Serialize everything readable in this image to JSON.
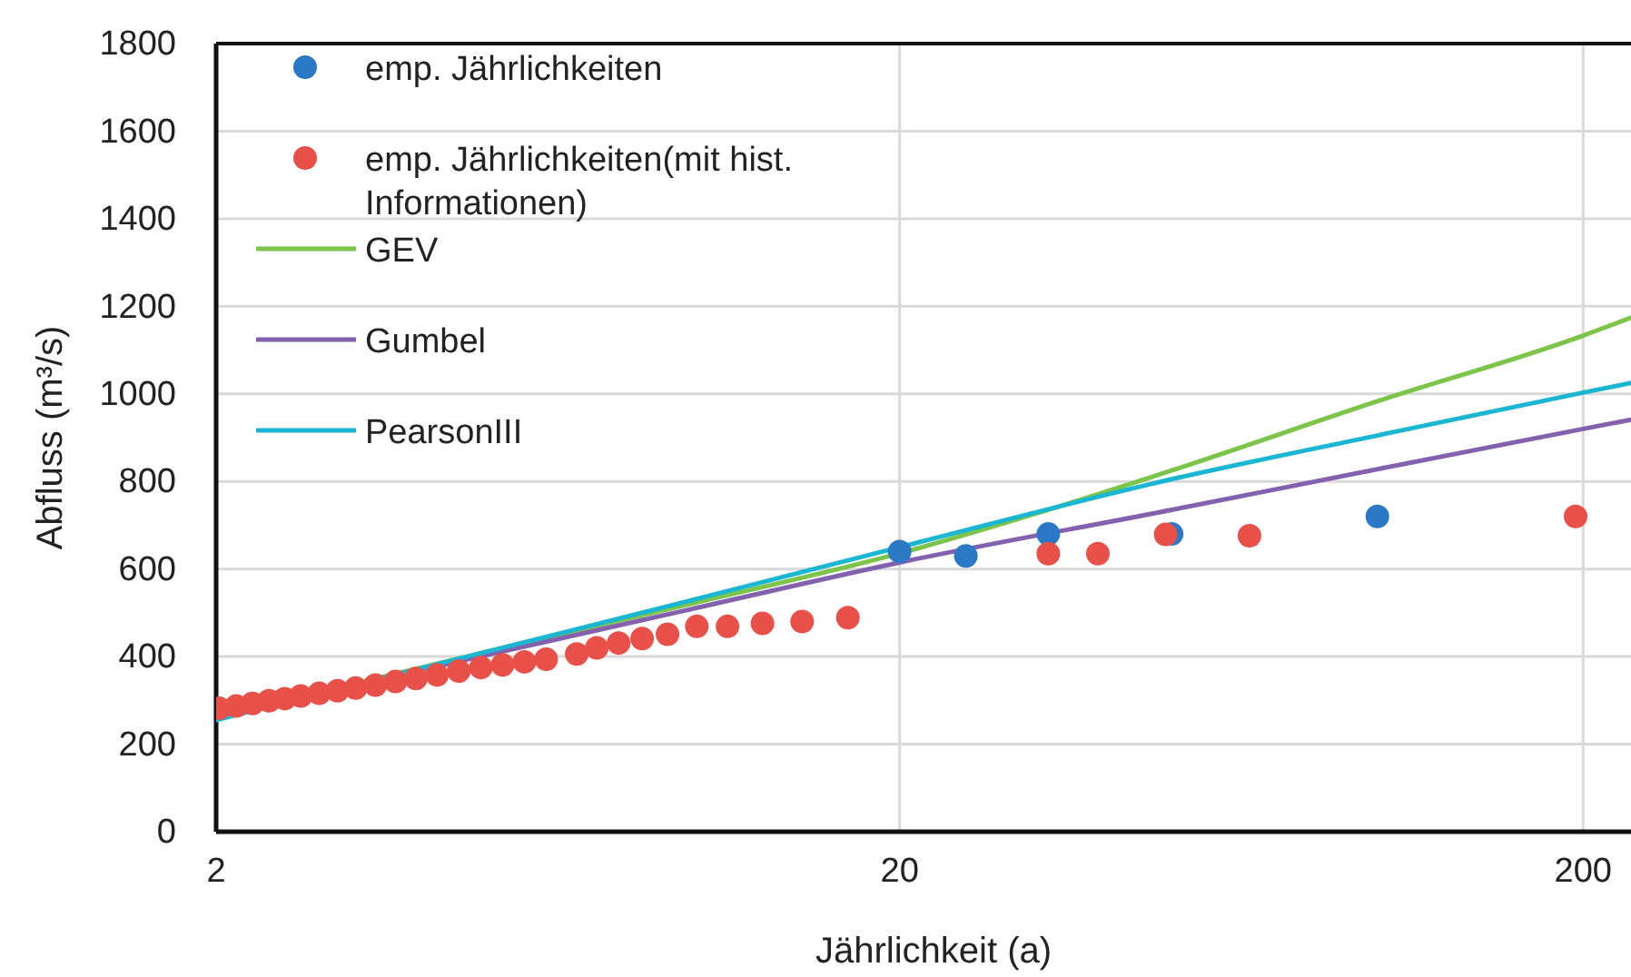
{
  "chart_data": {
    "type": "scatter",
    "xlabel": "Jährlichkeit (a)",
    "ylabel": "Abfluss (m³/s)",
    "log": "x",
    "xlim": [
      2,
      235
    ],
    "xticks": [
      2,
      20,
      200
    ],
    "ylim": [
      0,
      1800
    ],
    "yticks": [
      0,
      200,
      400,
      600,
      800,
      1000,
      1200,
      1400,
      1600,
      1800
    ],
    "grid": true,
    "legend": "top left",
    "series": [
      {
        "name": "emp. Jährlichkeiten",
        "marker": "circle",
        "color": "#2a78c6",
        "x": [
          20,
          25,
          33,
          50,
          100
        ],
        "values": [
          640,
          630,
          680,
          680,
          720
        ]
      },
      {
        "name": "emp. Jährlichkeiten(mit hist. Informationen)",
        "marker": "circle",
        "color": "#e8504a",
        "x": [
          2.02,
          2.14,
          2.26,
          2.39,
          2.52,
          2.66,
          2.83,
          3.01,
          3.2,
          3.42,
          3.66,
          3.92,
          4.21,
          4.53,
          4.88,
          5.25,
          5.65,
          6.08,
          6.74,
          7.21,
          7.76,
          8.4,
          9.15,
          10.1,
          11.2,
          12.6,
          14.4,
          16.8,
          33,
          39,
          49,
          65,
          195
        ],
        "values": [
          282,
          287,
          293,
          299,
          304,
          310,
          316,
          322,
          328,
          335,
          343,
          350,
          358,
          367,
          375,
          381,
          388,
          394,
          406,
          420,
          431,
          441,
          451,
          469,
          469,
          476,
          480,
          489,
          635,
          635,
          679,
          676,
          720
        ]
      },
      {
        "name": "GEV",
        "type": "line",
        "color": "#7cc44a",
        "x": [
          2,
          5,
          10,
          20,
          50,
          100,
          200,
          235
        ],
        "values": [
          262,
          412,
          522,
          636,
          825,
          983,
          1133,
          1174
        ]
      },
      {
        "name": "Gumbel",
        "type": "line",
        "color": "#8361ae",
        "x": [
          2,
          5,
          10,
          20,
          50,
          100,
          200,
          235
        ],
        "values": [
          265,
          404,
          510,
          615,
          735,
          828,
          920,
          941
        ]
      },
      {
        "name": "PearsonIII",
        "type": "line",
        "color": "#1bb6d1",
        "x": [
          2,
          5,
          10,
          20,
          50,
          100,
          200,
          235
        ],
        "values": [
          255,
          412,
          530,
          650,
          805,
          905,
          1003,
          1025
        ]
      }
    ]
  }
}
